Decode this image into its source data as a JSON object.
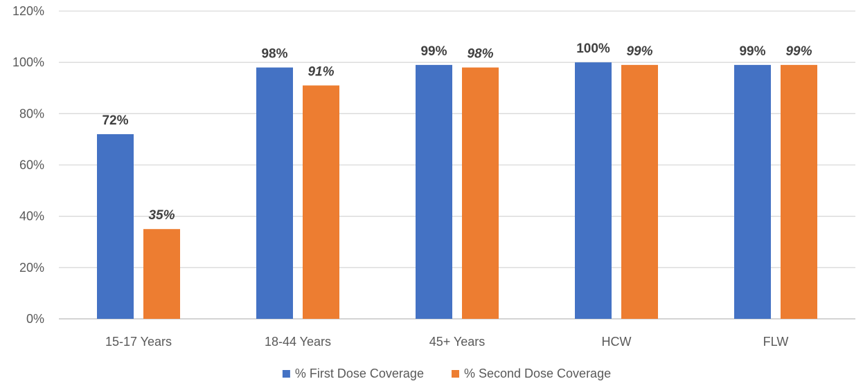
{
  "chart_data": {
    "type": "bar",
    "title": "",
    "xlabel": "",
    "ylabel": "",
    "categories": [
      "15-17 Years",
      "18-44 Years",
      "45+ Years",
      "HCW",
      "FLW"
    ],
    "series": [
      {
        "name": "% First Dose Coverage",
        "color": "#4472C4",
        "values": [
          72,
          98,
          99,
          100,
          99
        ],
        "labels": [
          "72%",
          "98%",
          "99%",
          "100%",
          "99%"
        ],
        "label_style": "bold"
      },
      {
        "name": "% Second Dose Coverage",
        "color": "#ED7D31",
        "values": [
          35,
          91,
          98,
          99,
          99
        ],
        "labels": [
          "35%",
          "91%",
          "98%",
          "99%",
          "99%"
        ],
        "label_style": "bold-italic"
      }
    ],
    "ylim": [
      0,
      120
    ],
    "yticks": [
      0,
      20,
      40,
      60,
      80,
      100,
      120
    ],
    "ytick_labels": [
      "0%",
      "20%",
      "40%",
      "60%",
      "80%",
      "100%",
      "120%"
    ],
    "grid": true,
    "gridline_color": "#D9D9D9",
    "legend_position": "bottom"
  }
}
